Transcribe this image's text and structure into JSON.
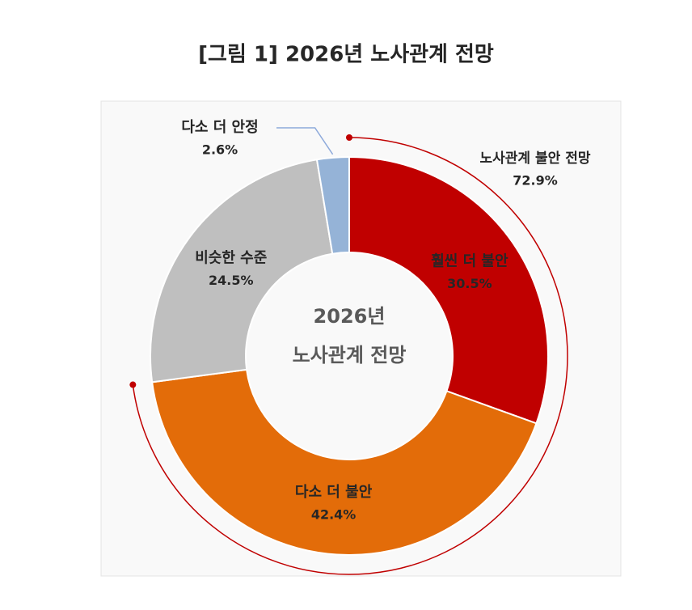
{
  "chart_data": {
    "type": "donut",
    "title": "[그림 1] 2026년 노사관계 전망",
    "center_text": [
      "2026년",
      "노사관계 전망"
    ],
    "categories": [
      "훨씬 더 불안",
      "다소 더 불안",
      "비슷한 수준",
      "다소 더 안정"
    ],
    "values": [
      30.5,
      42.4,
      24.5,
      2.6
    ],
    "value_labels": [
      "30.5%",
      "42.4%",
      "24.5%",
      "2.6%"
    ],
    "colors": [
      "#c00000",
      "#e36c09",
      "#bfbfbf",
      "#95b3d7"
    ],
    "group": {
      "name": "노사관계 불안 전망",
      "value": 72.9,
      "value_label": "72.9%",
      "color": "#c00000"
    }
  }
}
